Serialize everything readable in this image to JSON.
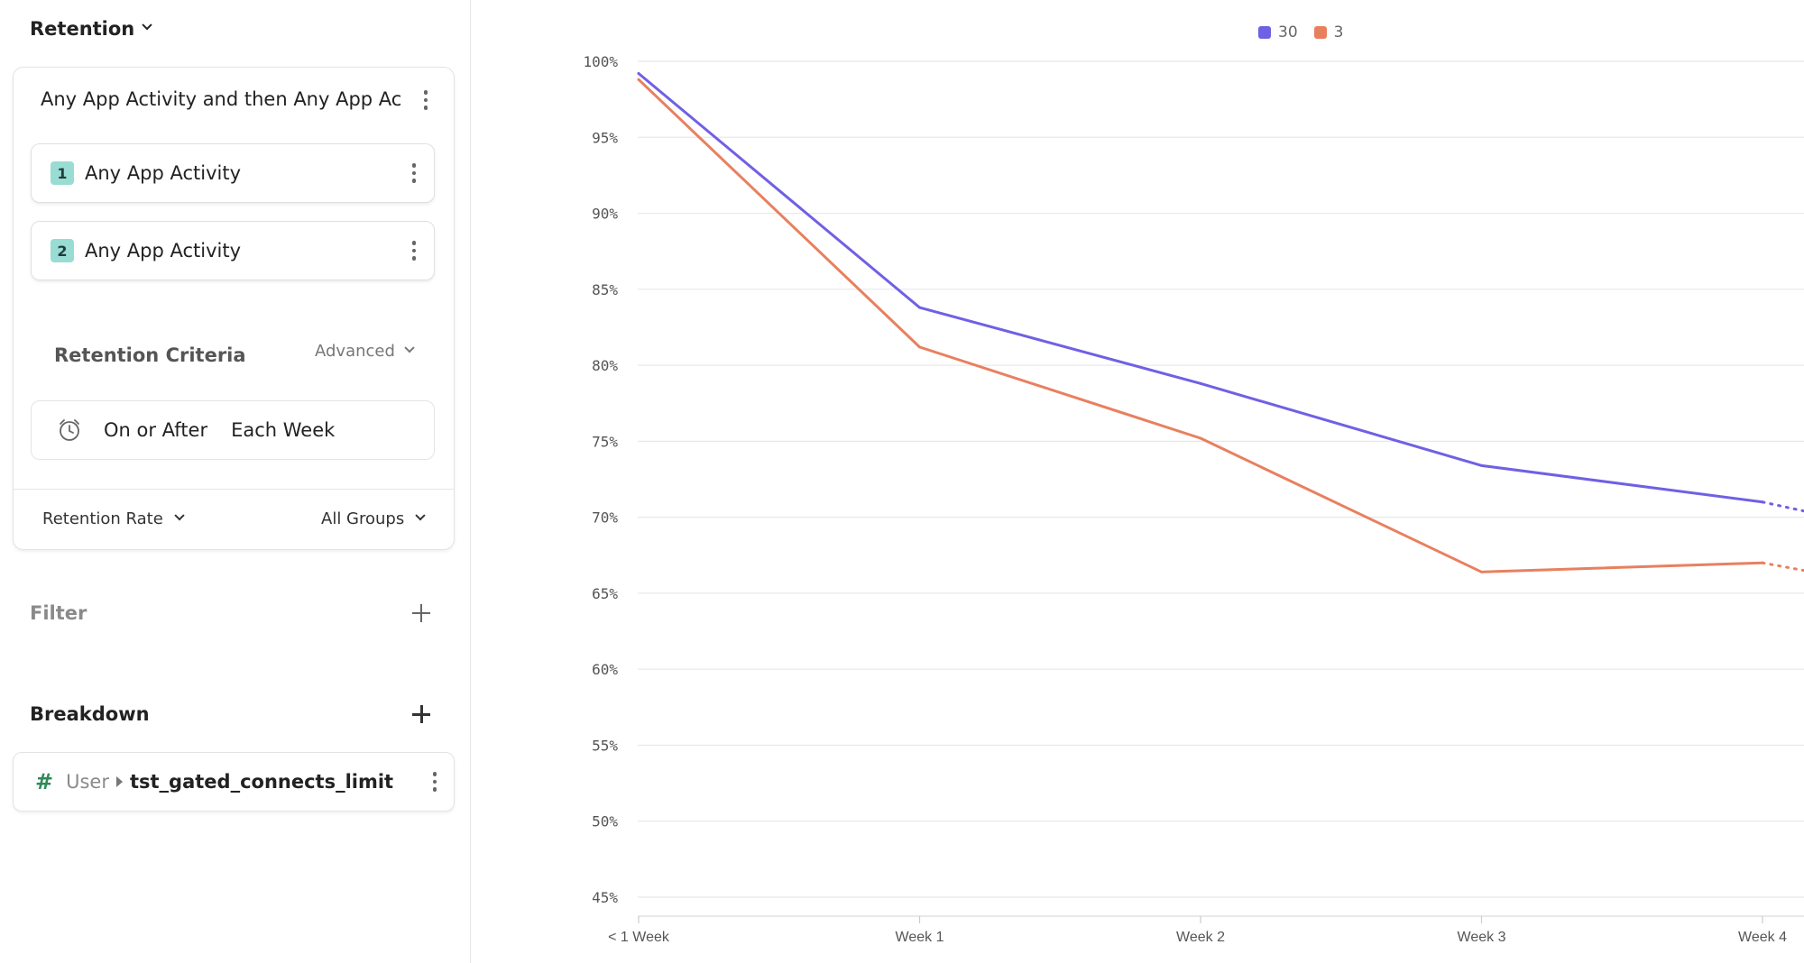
{
  "sidebar": {
    "report_type": "Retention",
    "metric_card": {
      "title": "Any App Activity and then Any App Ac...",
      "steps": [
        {
          "number": "1",
          "label": "Any App Activity"
        },
        {
          "number": "2",
          "label": "Any App Activity"
        }
      ],
      "criteria_label": "Retention Criteria",
      "advanced_label": "Advanced",
      "criteria_mode": "On or After",
      "criteria_period": "Each Week",
      "measure": "Retention Rate",
      "groups": "All Groups"
    },
    "filter_label": "Filter",
    "breakdown_label": "Breakdown",
    "breakdown_property": {
      "entity": "User",
      "name": "tst_gated_connects_limit",
      "icon": "hash-icon"
    }
  },
  "colors": {
    "series_30": "#7060e4",
    "series_3": "#e8805f",
    "teal_badge": "#99dcd4",
    "grid": "#e8e8e8"
  },
  "chart_data": {
    "type": "line",
    "categories": [
      "< 1 Week",
      "Week 1",
      "Week 2",
      "Week 3",
      "Week 4"
    ],
    "y_ticks": [
      "100%",
      "95%",
      "90%",
      "85%",
      "80%",
      "75%",
      "70%",
      "65%",
      "60%",
      "55%",
      "50%",
      "45%"
    ],
    "ylim": [
      45,
      100
    ],
    "legend_position": "top-center",
    "series": [
      {
        "name": "30",
        "color": "#7060e4",
        "values": [
          99.2,
          83.8,
          78.8,
          73.4,
          71.0
        ],
        "incomplete_next": 67.0
      },
      {
        "name": "3",
        "color": "#e8805f",
        "values": [
          98.8,
          81.2,
          75.2,
          66.4,
          67.0
        ],
        "incomplete_next": 63.6
      }
    ]
  }
}
